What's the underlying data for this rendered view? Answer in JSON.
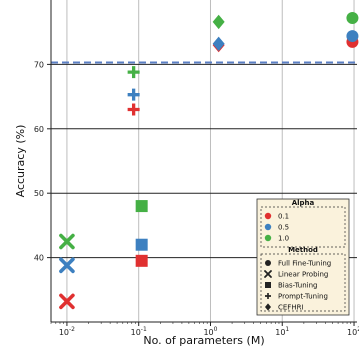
{
  "chart_data": {
    "type": "scatter",
    "xlabel": "No. of parameters (M)",
    "ylabel": "Accuracy (%)",
    "xscale": "log",
    "xlim": [
      0.006,
      110
    ],
    "ylim": [
      30,
      80
    ],
    "xticks": [
      {
        "value": 0.01,
        "base": "10",
        "exp": "-2"
      },
      {
        "value": 0.1,
        "base": "10",
        "exp": "-1"
      },
      {
        "value": 1,
        "base": "10",
        "exp": "0"
      },
      {
        "value": 10,
        "base": "10",
        "exp": "1"
      },
      {
        "value": 100,
        "base": "10",
        "exp": "2"
      }
    ],
    "yticks": [
      40,
      50,
      60,
      70
    ],
    "grid": true,
    "reference_line": {
      "y": 70.3,
      "style": "dashed",
      "color": "#5b7fc4"
    },
    "colors": {
      "0.1": "#e03030",
      "0.5": "#3d80c0",
      "1.0": "#45b045"
    },
    "markers": {
      "Full Fine-Tuning": "circle",
      "Linear Probing": "x",
      "Bias-Tuning": "square",
      "Prompt-Tuning": "plus",
      "CEFHRI": "diamond"
    },
    "points": [
      {
        "method": "Linear Probing",
        "alpha": "0.1",
        "x": 0.01,
        "y": 33.2
      },
      {
        "method": "Linear Probing",
        "alpha": "0.5",
        "x": 0.01,
        "y": 38.8
      },
      {
        "method": "Linear Probing",
        "alpha": "1.0",
        "x": 0.01,
        "y": 42.5
      },
      {
        "method": "Bias-Tuning",
        "alpha": "0.1",
        "x": 0.11,
        "y": 39.5
      },
      {
        "method": "Bias-Tuning",
        "alpha": "0.5",
        "x": 0.11,
        "y": 42.0
      },
      {
        "method": "Bias-Tuning",
        "alpha": "1.0",
        "x": 0.11,
        "y": 48.0
      },
      {
        "method": "Prompt-Tuning",
        "alpha": "0.1",
        "x": 0.085,
        "y": 63.0
      },
      {
        "method": "Prompt-Tuning",
        "alpha": "0.5",
        "x": 0.085,
        "y": 65.3
      },
      {
        "method": "Prompt-Tuning",
        "alpha": "1.0",
        "x": 0.085,
        "y": 68.8
      },
      {
        "method": "CEFHRI",
        "alpha": "0.1",
        "x": 1.3,
        "y": 73.0
      },
      {
        "method": "CEFHRI",
        "alpha": "0.5",
        "x": 1.3,
        "y": 73.2
      },
      {
        "method": "CEFHRI",
        "alpha": "1.0",
        "x": 1.3,
        "y": 76.6
      },
      {
        "method": "Full Fine-Tuning",
        "alpha": "0.1",
        "x": 95,
        "y": 73.5
      },
      {
        "method": "Full Fine-Tuning",
        "alpha": "0.5",
        "x": 95,
        "y": 74.4
      },
      {
        "method": "Full Fine-Tuning",
        "alpha": "1.0",
        "x": 95,
        "y": 77.2
      }
    ],
    "legend": {
      "placement": "lower-right",
      "alpha_title": "Alpha",
      "alpha_items": [
        "0.1",
        "0.5",
        "1.0"
      ],
      "method_title": "Method",
      "method_items": [
        "Full Fine-Tuning",
        "Linear Probing",
        "Bias-Tuning",
        "Prompt-Tuning",
        "CEFHRI"
      ]
    }
  }
}
